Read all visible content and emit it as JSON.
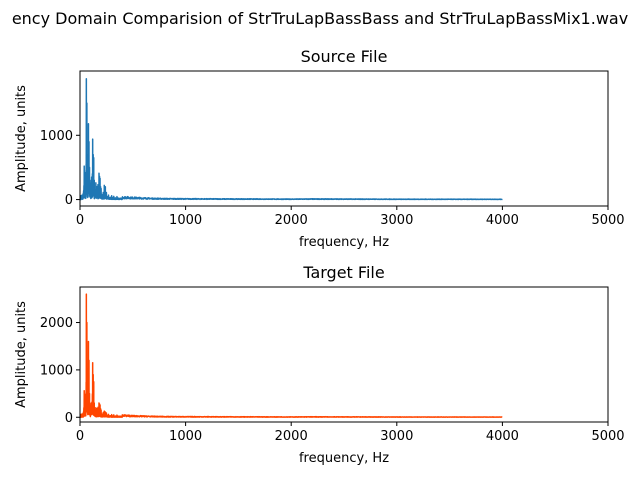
{
  "figure_title": "ency Domain Comparision of StrTruLapBassBass and StrTruLapBassMix1.wav",
  "chart_data": [
    {
      "type": "line",
      "title": "Source File",
      "xlabel": "frequency, Hz",
      "ylabel": "Amplitude, units",
      "xlim": [
        0,
        5000
      ],
      "ylim": [
        -100,
        2000
      ],
      "xticks": [
        0,
        1000,
        2000,
        3000,
        4000,
        5000
      ],
      "yticks": [
        0,
        1000
      ],
      "grid": false,
      "color": "#1f77b4",
      "x_range": [
        0,
        4000
      ],
      "peaks": [
        [
          10,
          60
        ],
        [
          20,
          70
        ],
        [
          30,
          90
        ],
        [
          40,
          520
        ],
        [
          45,
          250
        ],
        [
          50,
          420
        ],
        [
          55,
          300
        ],
        [
          60,
          1880
        ],
        [
          65,
          1500
        ],
        [
          70,
          700
        ],
        [
          75,
          400
        ],
        [
          80,
          1180
        ],
        [
          85,
          900
        ],
        [
          90,
          500
        ],
        [
          95,
          300
        ],
        [
          100,
          250
        ],
        [
          110,
          350
        ],
        [
          120,
          940
        ],
        [
          125,
          700
        ],
        [
          130,
          650
        ],
        [
          135,
          300
        ],
        [
          140,
          150
        ],
        [
          150,
          260
        ],
        [
          160,
          200
        ],
        [
          170,
          230
        ],
        [
          180,
          410
        ],
        [
          185,
          360
        ],
        [
          190,
          330
        ],
        [
          195,
          200
        ],
        [
          200,
          170
        ],
        [
          220,
          110
        ],
        [
          230,
          220
        ],
        [
          240,
          200
        ],
        [
          250,
          110
        ],
        [
          270,
          70
        ],
        [
          300,
          60
        ],
        [
          320,
          50
        ],
        [
          350,
          45
        ],
        [
          400,
          35
        ],
        [
          450,
          30
        ],
        [
          500,
          25
        ],
        [
          600,
          20
        ],
        [
          700,
          15
        ],
        [
          800,
          12
        ],
        [
          1000,
          10
        ],
        [
          1500,
          8
        ],
        [
          2000,
          6
        ],
        [
          2200,
          8
        ],
        [
          3000,
          5
        ],
        [
          4000,
          4
        ]
      ]
    },
    {
      "type": "line",
      "title": "Target File",
      "xlabel": "frequency, Hz",
      "ylabel": "Amplitude, units",
      "xlim": [
        0,
        5000
      ],
      "ylim": [
        -100,
        2750
      ],
      "xticks": [
        0,
        1000,
        2000,
        3000,
        4000,
        5000
      ],
      "yticks": [
        0,
        1000,
        2000
      ],
      "grid": false,
      "color": "#ff4500",
      "x_range": [
        0,
        4000
      ],
      "peaks": [
        [
          10,
          60
        ],
        [
          20,
          70
        ],
        [
          30,
          80
        ],
        [
          40,
          560
        ],
        [
          45,
          250
        ],
        [
          50,
          480
        ],
        [
          55,
          300
        ],
        [
          60,
          2600
        ],
        [
          65,
          2000
        ],
        [
          70,
          900
        ],
        [
          75,
          500
        ],
        [
          80,
          1600
        ],
        [
          85,
          1200
        ],
        [
          90,
          500
        ],
        [
          95,
          300
        ],
        [
          100,
          250
        ],
        [
          110,
          300
        ],
        [
          120,
          1150
        ],
        [
          125,
          900
        ],
        [
          130,
          750
        ],
        [
          135,
          300
        ],
        [
          140,
          150
        ],
        [
          150,
          200
        ],
        [
          160,
          180
        ],
        [
          170,
          210
        ],
        [
          180,
          300
        ],
        [
          185,
          280
        ],
        [
          190,
          260
        ],
        [
          195,
          180
        ],
        [
          200,
          150
        ],
        [
          220,
          100
        ],
        [
          230,
          130
        ],
        [
          240,
          110
        ],
        [
          250,
          90
        ],
        [
          270,
          60
        ],
        [
          300,
          55
        ],
        [
          320,
          50
        ],
        [
          350,
          45
        ],
        [
          400,
          35
        ],
        [
          450,
          30
        ],
        [
          500,
          25
        ],
        [
          600,
          20
        ],
        [
          700,
          15
        ],
        [
          800,
          12
        ],
        [
          1000,
          10
        ],
        [
          1500,
          8
        ],
        [
          2000,
          6
        ],
        [
          2200,
          8
        ],
        [
          3000,
          5
        ],
        [
          4000,
          4
        ]
      ]
    }
  ]
}
